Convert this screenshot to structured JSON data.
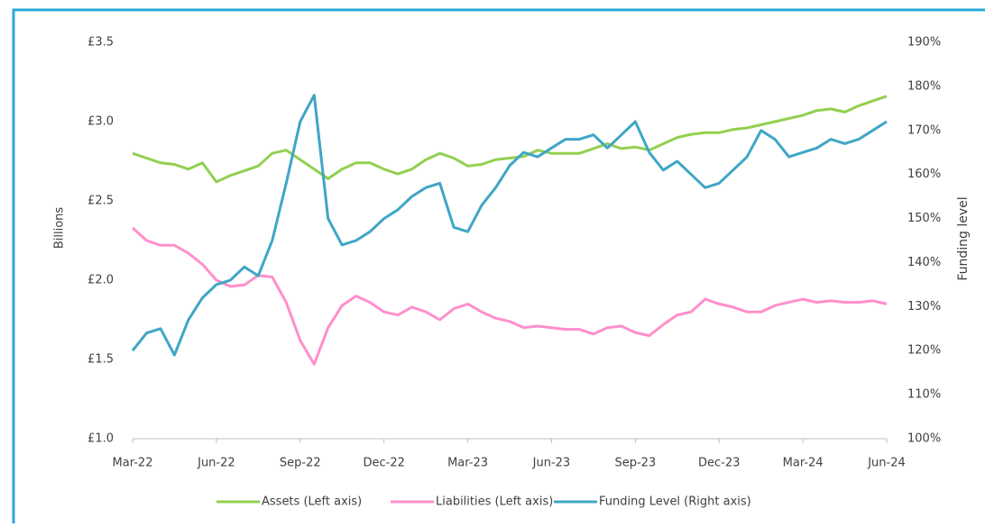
{
  "chart_data": {
    "type": "line",
    "ylabel": "Billions",
    "y2label": "Funding level",
    "categories": [
      "Mar-22",
      null,
      null,
      null,
      null,
      null,
      "Jun-22",
      null,
      null,
      null,
      null,
      null,
      "Sep-22",
      null,
      null,
      null,
      null,
      null,
      "Dec-22",
      null,
      null,
      null,
      null,
      null,
      "Mar-23",
      null,
      null,
      null,
      null,
      null,
      "Jun-23",
      null,
      null,
      null,
      null,
      null,
      "Sep-23",
      null,
      null,
      null,
      null,
      null,
      "Dec-23",
      null,
      null,
      null,
      null,
      null,
      "Mar-24",
      null,
      null,
      null,
      null,
      null,
      "Jun-24"
    ],
    "series": [
      {
        "name": "Assets (Left axis)",
        "color": "#92d050",
        "values": [
          2.8,
          2.77,
          2.74,
          2.73,
          2.7,
          2.74,
          2.62,
          2.66,
          2.69,
          2.72,
          2.8,
          2.82,
          2.76,
          2.7,
          2.64,
          2.7,
          2.74,
          2.74,
          2.7,
          2.67,
          2.7,
          2.76,
          2.8,
          2.77,
          2.72,
          2.73,
          2.76,
          2.77,
          2.78,
          2.82,
          2.8,
          2.8,
          2.8,
          2.83,
          2.86,
          2.83,
          2.84,
          2.82,
          2.86,
          2.9,
          2.92,
          2.93,
          2.93,
          2.95,
          2.96,
          2.98,
          3.0,
          3.02,
          3.04,
          3.07,
          3.08,
          3.06,
          3.1,
          3.13,
          3.16
        ]
      },
      {
        "name": "Liabilities (Left axis)",
        "color": "#ff8fcb",
        "values": [
          2.33,
          2.25,
          2.22,
          2.22,
          2.17,
          2.1,
          2.0,
          1.96,
          1.97,
          2.03,
          2.02,
          1.86,
          1.62,
          1.47,
          1.7,
          1.84,
          1.9,
          1.86,
          1.8,
          1.78,
          1.83,
          1.8,
          1.75,
          1.82,
          1.85,
          1.8,
          1.76,
          1.74,
          1.7,
          1.71,
          1.7,
          1.69,
          1.69,
          1.66,
          1.7,
          1.71,
          1.67,
          1.65,
          1.72,
          1.78,
          1.8,
          1.88,
          1.85,
          1.83,
          1.8,
          1.8,
          1.84,
          1.86,
          1.88,
          1.86,
          1.87,
          1.86,
          1.86,
          1.87,
          1.85
        ]
      },
      {
        "name": "Funding Level (Right axis)",
        "color": "#3fa6c5",
        "axis": "y2",
        "values": [
          120,
          124,
          125,
          119,
          127,
          132,
          135,
          136,
          139,
          137,
          145,
          158,
          172,
          178,
          150,
          144,
          145,
          147,
          150,
          152,
          155,
          157,
          158,
          148,
          147,
          153,
          157,
          162,
          165,
          164,
          166,
          168,
          168,
          169,
          166,
          169,
          172,
          165,
          161,
          163,
          160,
          157,
          158,
          161,
          164,
          170,
          168,
          164,
          165,
          166,
          168,
          167,
          168,
          170,
          172
        ]
      }
    ],
    "ylim": [
      1.0,
      3.5
    ],
    "yticks": [
      {
        "value": 1.0,
        "label": "£1.0"
      },
      {
        "value": 1.5,
        "label": "£1.5"
      },
      {
        "value": 2.0,
        "label": "£2.0"
      },
      {
        "value": 2.5,
        "label": "£2.5"
      },
      {
        "value": 3.0,
        "label": "£3.0"
      },
      {
        "value": 3.5,
        "label": "£3.5"
      }
    ],
    "y2lim": [
      100,
      190
    ],
    "y2ticks": [
      {
        "value": 100,
        "label": "100%"
      },
      {
        "value": 110,
        "label": "110%"
      },
      {
        "value": 120,
        "label": "120%"
      },
      {
        "value": 130,
        "label": "130%"
      },
      {
        "value": 140,
        "label": "140%"
      },
      {
        "value": 150,
        "label": "150%"
      },
      {
        "value": 160,
        "label": "160%"
      },
      {
        "value": 170,
        "label": "170%"
      },
      {
        "value": 180,
        "label": "180%"
      },
      {
        "value": 190,
        "label": "190%"
      }
    ],
    "grid": false,
    "legend": "bottom"
  }
}
